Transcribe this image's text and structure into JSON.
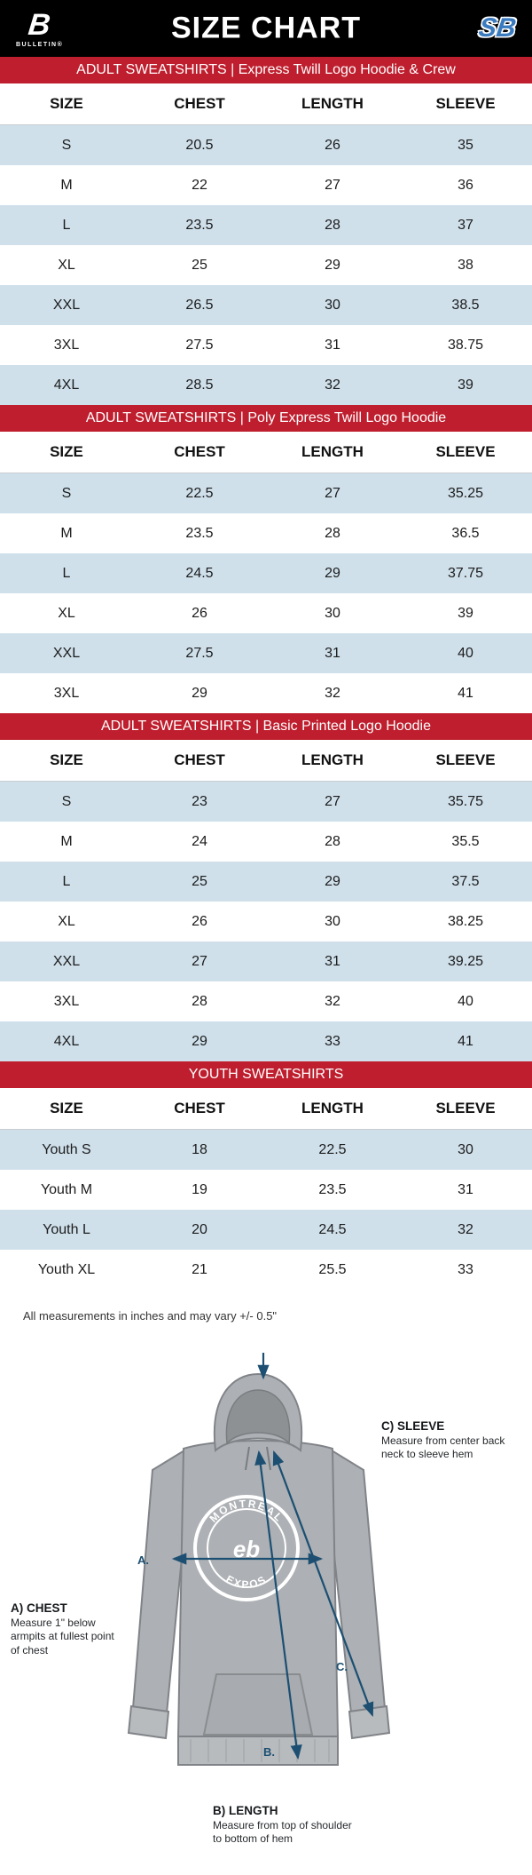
{
  "header": {
    "title": "SIZE CHART",
    "brand_left_mark": "B",
    "brand_left": "BULLETIN®",
    "brand_right": "SB"
  },
  "columns": [
    "SIZE",
    "CHEST",
    "LENGTH",
    "SLEEVE"
  ],
  "sections": [
    {
      "banner": "ADULT SWEATSHIRTS | Express Twill Logo Hoodie & Crew",
      "rows": [
        [
          "S",
          "20.5",
          "26",
          "35"
        ],
        [
          "M",
          "22",
          "27",
          "36"
        ],
        [
          "L",
          "23.5",
          "28",
          "37"
        ],
        [
          "XL",
          "25",
          "29",
          "38"
        ],
        [
          "XXL",
          "26.5",
          "30",
          "38.5"
        ],
        [
          "3XL",
          "27.5",
          "31",
          "38.75"
        ],
        [
          "4XL",
          "28.5",
          "32",
          "39"
        ]
      ]
    },
    {
      "banner": "ADULT SWEATSHIRTS | Poly Express Twill Logo Hoodie",
      "rows": [
        [
          "S",
          "22.5",
          "27",
          "35.25"
        ],
        [
          "M",
          "23.5",
          "28",
          "36.5"
        ],
        [
          "L",
          "24.5",
          "29",
          "37.75"
        ],
        [
          "XL",
          "26",
          "30",
          "39"
        ],
        [
          "XXL",
          "27.5",
          "31",
          "40"
        ],
        [
          "3XL",
          "29",
          "32",
          "41"
        ]
      ]
    },
    {
      "banner": "ADULT SWEATSHIRTS | Basic Printed Logo Hoodie",
      "rows": [
        [
          "S",
          "23",
          "27",
          "35.75"
        ],
        [
          "M",
          "24",
          "28",
          "35.5"
        ],
        [
          "L",
          "25",
          "29",
          "37.5"
        ],
        [
          "XL",
          "26",
          "30",
          "38.25"
        ],
        [
          "XXL",
          "27",
          "31",
          "39.25"
        ],
        [
          "3XL",
          "28",
          "32",
          "40"
        ],
        [
          "4XL",
          "29",
          "33",
          "41"
        ]
      ]
    },
    {
      "banner": "YOUTH SWEATSHIRTS",
      "rows": [
        [
          "Youth S",
          "18",
          "22.5",
          "30"
        ],
        [
          "Youth M",
          "19",
          "23.5",
          "31"
        ],
        [
          "Youth L",
          "20",
          "24.5",
          "32"
        ],
        [
          "Youth XL",
          "21",
          "25.5",
          "33"
        ]
      ]
    }
  ],
  "note": "All measurements in inches and may vary +/- 0.5\"",
  "diagram": {
    "sleeve_label": "C) SLEEVE",
    "sleeve_desc": "Measure from center back neck to sleeve hem",
    "chest_label": "A) CHEST",
    "chest_desc": "Measure 1\" below armpits at fullest point of chest",
    "length_label": "B) LENGTH",
    "length_desc": "Measure from top of shoulder to bottom of hem",
    "marker_a": "A.",
    "marker_b": "B.",
    "marker_c": "C.",
    "logo_arc_top": "MONTREAL",
    "logo_arc_bottom": "EXPOS",
    "logo_center": "eb"
  },
  "colors": {
    "banner_red": "#be1e2d",
    "row_alt_blue": "#cfe0eb",
    "arrow_navy": "#1c4f72",
    "bar_black": "#000000"
  }
}
